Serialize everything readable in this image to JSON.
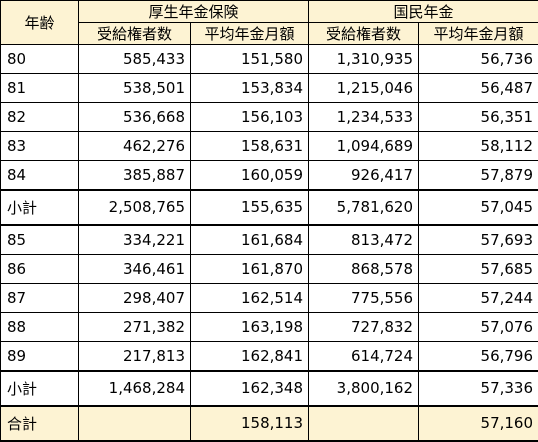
{
  "table": {
    "header": {
      "age": "年齢",
      "groups": [
        "厚生年金保険",
        "国民年金"
      ],
      "columns": [
        "受給権者数",
        "平均年金月額",
        "受給権者数",
        "平均年金月額"
      ]
    },
    "rows": [
      [
        "80",
        "585,433",
        "151,580",
        "1,310,935",
        "56,736"
      ],
      [
        "81",
        "538,501",
        "153,834",
        "1,215,046",
        "56,487"
      ],
      [
        "82",
        "536,668",
        "156,103",
        "1,234,533",
        "56,351"
      ],
      [
        "83",
        "462,276",
        "158,631",
        "1,094,689",
        "58,112"
      ],
      [
        "84",
        "385,887",
        "160,059",
        "926,417",
        "57,879"
      ],
      [
        "小計",
        "2,508,765",
        "155,635",
        "5,781,620",
        "57,045"
      ],
      [
        "85",
        "334,221",
        "161,684",
        "813,472",
        "57,693"
      ],
      [
        "86",
        "346,461",
        "161,870",
        "868,578",
        "57,685"
      ],
      [
        "87",
        "298,407",
        "162,514",
        "775,556",
        "57,244"
      ],
      [
        "88",
        "271,382",
        "163,198",
        "727,832",
        "57,076"
      ],
      [
        "89",
        "217,813",
        "162,841",
        "614,724",
        "56,796"
      ],
      [
        "小計",
        "1,468,284",
        "162,348",
        "3,800,162",
        "57,336"
      ],
      [
        "合計",
        null,
        "158,113",
        null,
        "57,160"
      ]
    ]
  }
}
